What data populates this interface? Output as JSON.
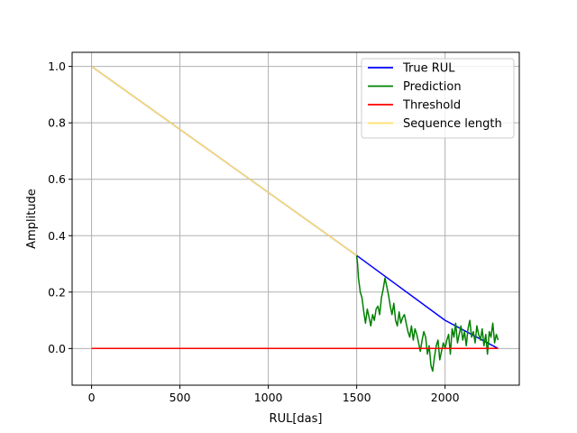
{
  "chart_data": {
    "type": "line",
    "title": "",
    "xlabel": "RUL[das]",
    "ylabel": "Amplitude",
    "xlim": [
      -110,
      2420
    ],
    "ylim": [
      -0.13,
      1.05
    ],
    "x_ticks": [
      0,
      500,
      1000,
      1500,
      2000
    ],
    "y_ticks": [
      0.0,
      0.2,
      0.4,
      0.6,
      0.8,
      1.0
    ],
    "x_tick_labels": [
      "0",
      "500",
      "1000",
      "1500",
      "2000"
    ],
    "y_tick_labels": [
      "0.0",
      "0.2",
      "0.4",
      "0.6",
      "0.8",
      "1.0"
    ],
    "grid": true,
    "legend_position": "top-right",
    "series": [
      {
        "name": "True RUL",
        "color": "#0000ff",
        "x": [
          0,
          1500,
          2000,
          2300
        ],
        "y": [
          1.0,
          0.33,
          0.1,
          0.0
        ]
      },
      {
        "name": "Prediction",
        "color": "#008000",
        "x": [
          1500,
          1505,
          1510,
          1520,
          1530,
          1540,
          1550,
          1560,
          1570,
          1580,
          1590,
          1600,
          1610,
          1620,
          1630,
          1640,
          1650,
          1660,
          1670,
          1680,
          1690,
          1700,
          1710,
          1720,
          1730,
          1740,
          1750,
          1760,
          1770,
          1780,
          1790,
          1800,
          1810,
          1820,
          1830,
          1840,
          1850,
          1860,
          1870,
          1880,
          1890,
          1900,
          1910,
          1920,
          1930,
          1940,
          1950,
          1960,
          1970,
          1980,
          1990,
          2000,
          2010,
          2020,
          2030,
          2040,
          2050,
          2060,
          2070,
          2080,
          2090,
          2100,
          2110,
          2120,
          2130,
          2140,
          2150,
          2160,
          2170,
          2180,
          2190,
          2200,
          2210,
          2220,
          2230,
          2240,
          2250,
          2260,
          2270,
          2280,
          2290,
          2300
        ],
        "y": [
          0.33,
          0.3,
          0.25,
          0.2,
          0.18,
          0.13,
          0.09,
          0.14,
          0.11,
          0.08,
          0.12,
          0.1,
          0.14,
          0.15,
          0.12,
          0.18,
          0.21,
          0.25,
          0.22,
          0.19,
          0.15,
          0.12,
          0.16,
          0.1,
          0.08,
          0.13,
          0.09,
          0.11,
          0.12,
          0.09,
          0.06,
          0.04,
          0.08,
          0.03,
          0.07,
          0.05,
          0.02,
          -0.01,
          0.03,
          0.06,
          0.04,
          -0.02,
          0.01,
          -0.06,
          -0.08,
          -0.03,
          0.01,
          0.03,
          -0.04,
          -0.01,
          0.02,
          0.0,
          0.03,
          0.05,
          -0.02,
          0.07,
          0.04,
          0.09,
          0.02,
          0.05,
          0.08,
          0.03,
          0.06,
          0.01,
          0.07,
          0.1,
          0.04,
          0.06,
          0.02,
          0.08,
          0.05,
          0.03,
          0.07,
          0.01,
          0.05,
          -0.02,
          0.06,
          0.04,
          0.09,
          0.02,
          0.05,
          0.03
        ]
      },
      {
        "name": "Threshold",
        "color": "#ff0000",
        "x": [
          0,
          2300
        ],
        "y": [
          0.0,
          0.0
        ]
      },
      {
        "name": "Sequence length",
        "color": "#ffe066",
        "x": [
          0,
          1500
        ],
        "y": [
          1.0,
          0.33
        ]
      }
    ]
  }
}
